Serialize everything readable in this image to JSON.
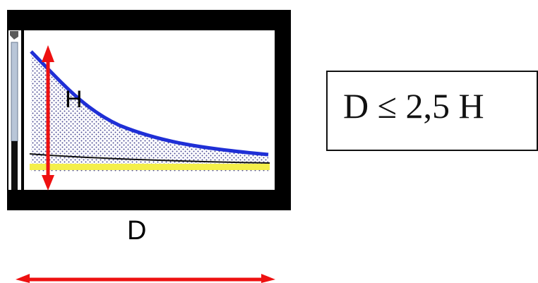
{
  "diagram": {
    "label_height": "H",
    "label_distance": "D",
    "formula": "D ≤ 2,5 H"
  },
  "colors": {
    "frame": "#000000",
    "interior": "#ffffff",
    "curve": "#1f2fd6",
    "shade_dots": "#3a3a8a",
    "ground_band": "#f4ef4a",
    "black_line": "#111111",
    "arrows": "#ee1111",
    "sidebar_fill": "#b9c6d8"
  }
}
